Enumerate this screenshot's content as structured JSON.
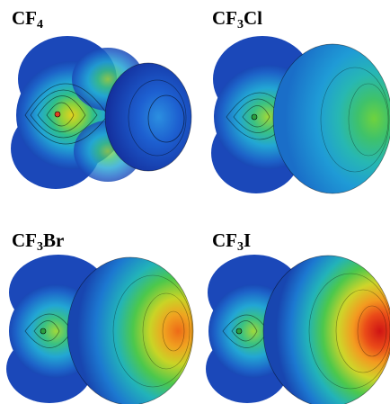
{
  "panels": [
    {
      "formula_prefix": "CF",
      "formula_subscript": "4",
      "formula_suffix": "",
      "molecule": "CF4",
      "map": "electrostatic potential surface",
      "halogen_lobe_peak": "blue"
    },
    {
      "formula_prefix": "CF",
      "formula_subscript": "3",
      "formula_suffix": "Cl",
      "molecule": "CF3Cl",
      "map": "electrostatic potential surface",
      "halogen_lobe_peak": "green"
    },
    {
      "formula_prefix": "CF",
      "formula_subscript": "3",
      "formula_suffix": "Br",
      "molecule": "CF3Br",
      "map": "electrostatic potential surface",
      "halogen_lobe_peak": "orange"
    },
    {
      "formula_prefix": "CF",
      "formula_subscript": "3",
      "formula_suffix": "I",
      "molecule": "CF3I",
      "map": "electrostatic potential surface",
      "halogen_lobe_peak": "red"
    }
  ],
  "colors": {
    "blue_low": "#1a3fb8",
    "cyan": "#25b3d6",
    "green": "#4fc84a",
    "yellow": "#e3d21e",
    "orange": "#ee7a17",
    "red": "#d11717",
    "contour": "#000000",
    "background": "#ffffff"
  }
}
